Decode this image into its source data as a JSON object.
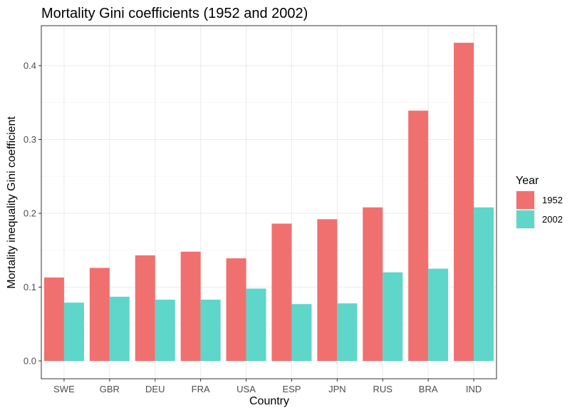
{
  "chart_data": {
    "type": "bar",
    "title": "Mortality Gini coefficients (1952 and 2002)",
    "xlabel": "Country",
    "ylabel": "Mortality inequality Gini coefficient",
    "categories": [
      "SWE",
      "GBR",
      "DEU",
      "FRA",
      "USA",
      "ESP",
      "JPN",
      "RUS",
      "BRA",
      "IND"
    ],
    "series": [
      {
        "name": "1952",
        "color": "#f07070",
        "values": [
          0.113,
          0.126,
          0.143,
          0.148,
          0.139,
          0.186,
          0.192,
          0.208,
          0.339,
          0.431
        ]
      },
      {
        "name": "2002",
        "color": "#5ed6ca",
        "values": [
          0.079,
          0.087,
          0.083,
          0.083,
          0.098,
          0.077,
          0.078,
          0.12,
          0.125,
          0.208
        ]
      }
    ],
    "ylim": [
      0,
      0.45
    ],
    "yticks": [
      0.0,
      0.1,
      0.2,
      0.3,
      0.4
    ],
    "ytick_labels": [
      "0.0",
      "0.1",
      "0.2",
      "0.3",
      "0.4"
    ],
    "legend": {
      "title": "Year",
      "position": "right"
    },
    "grid": true
  }
}
